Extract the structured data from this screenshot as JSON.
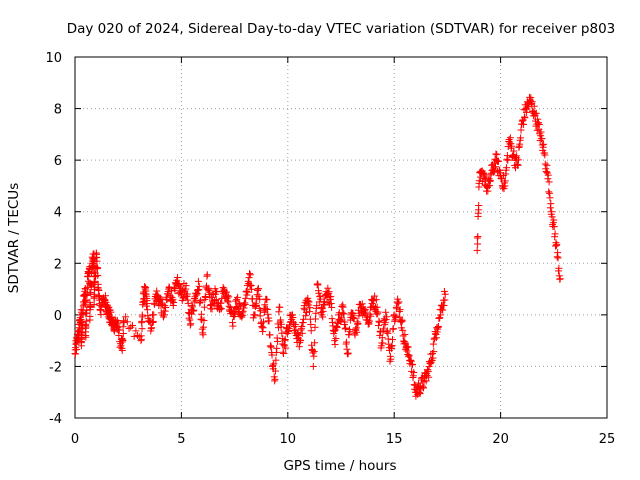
{
  "chart_data": {
    "type": "scatter",
    "title": "Day 020 of 2024, Sidereal Day-to-day VTEC variation (SDTVAR) for receiver p803",
    "xlabel": "GPS time / hours",
    "ylabel": "SDTVAR / TECUs",
    "xlim": [
      0,
      25
    ],
    "ylim": [
      -4,
      10
    ],
    "xticks": [
      0,
      5,
      10,
      15,
      20,
      25
    ],
    "yticks": [
      -4,
      -2,
      0,
      2,
      4,
      6,
      8,
      10
    ],
    "grid": true,
    "marker": "+",
    "series": [
      {
        "name": "SDTVAR",
        "color": "#ff0000",
        "x": [
          0.0,
          0.1,
          0.2,
          0.3,
          0.4,
          0.5,
          0.6,
          0.7,
          0.8,
          0.9,
          1.0,
          1.1,
          0.3,
          0.5,
          0.7,
          0.9,
          1.2,
          1.4,
          1.5,
          1.6,
          1.7,
          1.8,
          1.9,
          2.0,
          2.2,
          2.3,
          3.1,
          3.2,
          3.3,
          3.4,
          3.6,
          3.8,
          4.0,
          4.2,
          4.4,
          4.6,
          4.8,
          5.0,
          5.2,
          5.4,
          5.6,
          5.8,
          6.0,
          6.2,
          6.4,
          6.6,
          6.8,
          7.0,
          7.2,
          7.4,
          7.6,
          7.8,
          8.0,
          8.2,
          8.4,
          8.6,
          8.8,
          9.0,
          9.2,
          9.4,
          9.6,
          9.8,
          10.0,
          10.2,
          10.4,
          10.6,
          10.8,
          11.0,
          11.2,
          11.4,
          11.6,
          11.8,
          12.0,
          12.2,
          12.4,
          12.6,
          12.8,
          13.0,
          13.2,
          13.4,
          13.6,
          13.8,
          14.0,
          14.2,
          14.4,
          14.6,
          14.8,
          15.0,
          15.2,
          15.4,
          15.6,
          15.8,
          16.0,
          16.2,
          16.4,
          16.6,
          16.8,
          17.0,
          17.2,
          17.4,
          18.9,
          19.0,
          19.2,
          19.4,
          19.6,
          19.8,
          20.0,
          20.2,
          20.4,
          20.6,
          20.8,
          21.0,
          21.2,
          21.4,
          21.6,
          21.8,
          22.0,
          22.2,
          22.4,
          22.6,
          22.8
        ],
        "y": [
          -1.5,
          -1.0,
          -0.5,
          0.0,
          0.5,
          1.0,
          1.5,
          1.8,
          2.0,
          2.2,
          2.4,
          1.0,
          -1.2,
          -0.8,
          -0.2,
          0.4,
          0.2,
          0.6,
          0.3,
          0.0,
          -0.2,
          -0.4,
          -0.3,
          -0.5,
          -1.3,
          -0.3,
          -1.0,
          0.5,
          1.0,
          0.2,
          -0.5,
          0.8,
          0.5,
          0.0,
          1.0,
          0.6,
          1.2,
          0.8,
          1.0,
          -0.2,
          0.5,
          1.3,
          -0.7,
          1.5,
          0.4,
          0.8,
          0.2,
          1.0,
          0.5,
          -0.3,
          0.6,
          0.0,
          0.4,
          1.6,
          0.0,
          1.0,
          -0.5,
          0.6,
          -1.2,
          -2.5,
          0.3,
          -1.5,
          -0.5,
          0.0,
          -0.8,
          -1.0,
          0.2,
          0.5,
          -2.0,
          1.2,
          0.0,
          0.9,
          0.6,
          -1.0,
          -0.2,
          0.3,
          -1.5,
          0.0,
          -0.6,
          0.4,
          0.2,
          -0.3,
          0.6,
          0.3,
          -1.2,
          0.1,
          -1.8,
          0.0,
          0.5,
          -0.6,
          -1.4,
          -1.8,
          -3.0,
          -2.8,
          -2.6,
          -2.2,
          -1.5,
          -0.5,
          0.2,
          0.8,
          2.5,
          5.2,
          5.5,
          4.8,
          5.6,
          6.0,
          5.4,
          5.0,
          6.8,
          6.2,
          5.8,
          7.4,
          8.0,
          8.3,
          7.8,
          7.2,
          6.5,
          5.5,
          4.0,
          2.8,
          1.4
        ],
        "extra_band": true
      }
    ]
  }
}
